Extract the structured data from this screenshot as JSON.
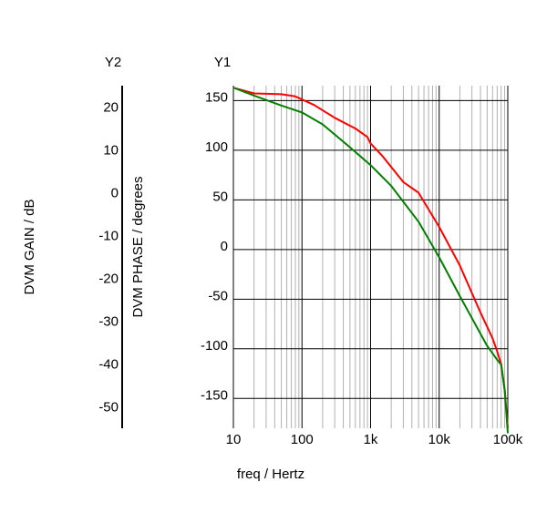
{
  "chart_data": {
    "type": "line",
    "y2_header": "Y2",
    "y1_header": "Y1",
    "xlabel": "freq / Hertz",
    "y2label": "DVM GAIN / dB",
    "y1label": "DVM PHASE / degrees",
    "xscale": "log",
    "xlim": [
      10,
      100000
    ],
    "x_ticks": [
      "10",
      "100",
      "1k",
      "10k",
      "100k"
    ],
    "y1lim": [
      -180,
      165
    ],
    "y1_ticks": [
      "150",
      "100",
      "50",
      "0",
      "-50",
      "-100",
      "-150"
    ],
    "y2lim": [
      -55,
      25
    ],
    "y2_ticks": [
      "20",
      "10",
      "0",
      "-10",
      "-20",
      "-30",
      "-40",
      "-50"
    ],
    "grid": true,
    "colors": {
      "gain": "#ff0000",
      "phase": "#008000",
      "grid_major": "#000000",
      "grid_minor": "#b0b0b0"
    },
    "series": [
      {
        "color": "#ff0000",
        "axis": "y2",
        "x": [
          10,
          20,
          50,
          80,
          150,
          300,
          600,
          900,
          1000,
          1500,
          3000,
          5000,
          10000,
          20000,
          40000,
          60000,
          70000,
          80000,
          90000,
          100000
        ],
        "y": [
          24.5,
          23.2,
          23.0,
          22.5,
          20.5,
          17.5,
          15.0,
          13.0,
          11.5,
          8.5,
          2.5,
          0.0,
          -8.0,
          -17.0,
          -28.0,
          -34.0,
          -37.0,
          -40.0,
          -46.0,
          -55.0
        ]
      },
      {
        "color": "#008000",
        "axis": "y1",
        "x": [
          10,
          20,
          50,
          100,
          200,
          500,
          1000,
          2000,
          5000,
          10000,
          20000,
          50000,
          70000,
          80000,
          90000,
          100000
        ],
        "y": [
          163,
          155,
          145,
          138,
          126,
          103,
          85,
          64,
          28,
          -8,
          -47,
          -97,
          -111,
          -116,
          -142,
          -185
        ]
      }
    ]
  }
}
